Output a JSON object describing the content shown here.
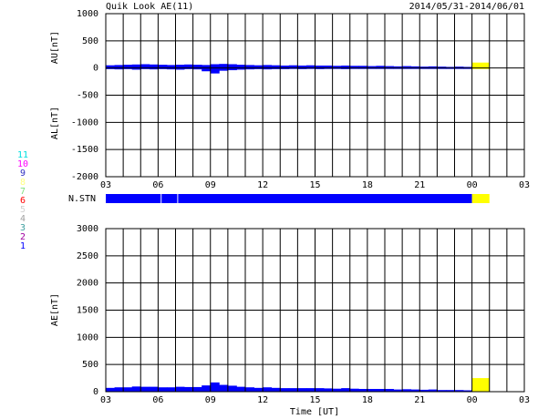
{
  "stations": [
    {
      "label": "11",
      "color": "#00e0e0"
    },
    {
      "label": "10",
      "color": "#ff00ff"
    },
    {
      "label": "9",
      "color": "#3030c0"
    },
    {
      "label": "8",
      "color": "#ffff80"
    },
    {
      "label": "7",
      "color": "#80e080"
    },
    {
      "label": "6",
      "color": "#ff0000"
    },
    {
      "label": "5",
      "color": "#d0d0d0"
    },
    {
      "label": "4",
      "color": "#a0a0a0"
    },
    {
      "label": "3",
      "color": "#40a0a0"
    },
    {
      "label": "2",
      "color": "#a000a0"
    },
    {
      "label": "1",
      "color": "#0000ff"
    }
  ],
  "chart_data": [
    {
      "type": "bar",
      "title": "Quik Look AE(11)",
      "subtitle": "2014/05/31-2014/06/01",
      "y_labels": [
        "AU[nT]",
        "AL[nT]"
      ],
      "x": [
        3,
        3.5,
        4,
        4.5,
        5,
        5.5,
        6,
        6.5,
        7,
        7.5,
        8,
        8.5,
        9,
        9.5,
        10,
        10.5,
        11,
        11.5,
        12,
        12.5,
        13,
        13.5,
        14,
        14.5,
        15,
        15.5,
        16,
        16.5,
        17,
        17.5,
        18,
        18.5,
        19,
        19.5,
        20,
        20.5,
        21,
        21.5,
        22,
        22.5,
        23,
        23.5
      ],
      "series": [
        {
          "color": "#0000ff",
          "values": [
            50,
            55,
            60,
            65,
            70,
            65,
            60,
            55,
            60,
            65,
            60,
            55,
            70,
            75,
            70,
            60,
            55,
            50,
            55,
            50,
            45,
            50,
            45,
            50,
            45,
            45,
            40,
            45,
            40,
            40,
            35,
            40,
            35,
            30,
            35,
            30,
            25,
            30,
            25,
            20,
            25,
            20
          ]
        },
        {
          "color": "#0000ff",
          "values": [
            -20,
            -25,
            -20,
            -30,
            -20,
            -25,
            -20,
            -25,
            -30,
            -20,
            -25,
            -60,
            -100,
            -50,
            -40,
            -30,
            -25,
            -20,
            -25,
            -20,
            -20,
            -15,
            -20,
            -15,
            -20,
            -15,
            -15,
            -20,
            -15,
            -10,
            -15,
            -10,
            -15,
            -10,
            -10,
            -10,
            -10,
            -10,
            -5,
            -10,
            -5,
            -5
          ]
        }
      ],
      "pending": {
        "color": "#ffff00",
        "x": [
          24,
          25
        ],
        "y": [
          -20,
          100
        ]
      },
      "xlim": [
        3,
        27
      ],
      "xticks": [
        {
          "value": 3,
          "label": "03"
        },
        {
          "value": 6,
          "label": "06"
        },
        {
          "value": 9,
          "label": "09"
        },
        12,
        15,
        18,
        21,
        {
          "value": 24,
          "label": "00"
        },
        {
          "value": 27,
          "label": "03"
        }
      ],
      "xgrid": [
        4,
        5,
        7,
        8,
        10,
        11,
        13,
        14,
        16,
        17,
        19,
        20,
        22,
        23,
        25,
        26
      ],
      "ylim": [
        -2000,
        1000
      ],
      "yticks": [
        -2000,
        -1500,
        -1000,
        -500,
        0,
        500,
        1000
      ],
      "grid": true,
      "stations_bar": {
        "label": "N.STN",
        "segments": [
          {
            "x": [
              3,
              6.15
            ],
            "color": "#0000ff"
          },
          {
            "x": [
              6.2,
              7.1
            ],
            "color": "#0000ff"
          },
          {
            "x": [
              7.15,
              24
            ],
            "color": "#0000ff"
          },
          {
            "x": [
              24,
              25
            ],
            "color": "#ffff00"
          }
        ]
      }
    },
    {
      "type": "bar",
      "x_label": "Time [UT]",
      "y_label": "AE[nT]",
      "x": [
        3,
        3.5,
        4,
        4.5,
        5,
        5.5,
        6,
        6.5,
        7,
        7.5,
        8,
        8.5,
        9,
        9.5,
        10,
        10.5,
        11,
        11.5,
        12,
        12.5,
        13,
        13.5,
        14,
        14.5,
        15,
        15.5,
        16,
        16.5,
        17,
        17.5,
        18,
        18.5,
        19,
        19.5,
        20,
        20.5,
        21,
        21.5,
        22,
        22.5,
        23,
        23.5
      ],
      "series": [
        {
          "color": "#0000ff",
          "values": [
            70,
            80,
            80,
            95,
            90,
            90,
            80,
            80,
            90,
            85,
            85,
            115,
            170,
            125,
            110,
            90,
            80,
            70,
            80,
            70,
            65,
            65,
            65,
            65,
            65,
            60,
            55,
            65,
            55,
            50,
            50,
            50,
            50,
            40,
            45,
            40,
            35,
            40,
            30,
            30,
            30,
            25
          ]
        }
      ],
      "pending": {
        "color": "#ffff00",
        "x": [
          24,
          25
        ],
        "y": [
          0,
          250
        ]
      },
      "xlim": [
        3,
        27
      ],
      "xticks": [
        {
          "value": 3,
          "label": "03"
        },
        {
          "value": 6,
          "label": "06"
        },
        {
          "value": 9,
          "label": "09"
        },
        12,
        15,
        18,
        21,
        {
          "value": 24,
          "label": "00"
        },
        {
          "value": 27,
          "label": "03"
        }
      ],
      "xgrid": [
        4,
        5,
        7,
        8,
        10,
        11,
        13,
        14,
        16,
        17,
        19,
        20,
        22,
        23,
        25,
        26
      ],
      "ylim": [
        0,
        3000
      ],
      "yticks": [
        0,
        500,
        1000,
        1500,
        2000,
        2500,
        3000
      ],
      "grid": true
    }
  ]
}
